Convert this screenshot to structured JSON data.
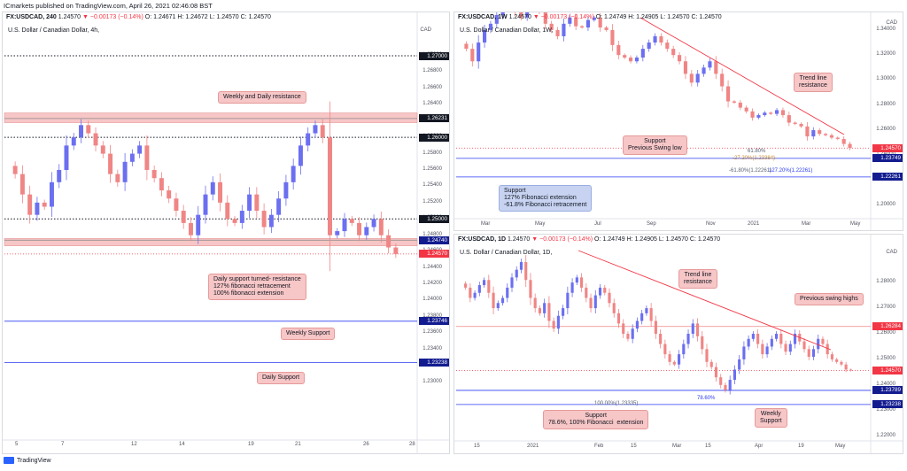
{
  "header": {
    "publisher": "ICmarkets published on TradingView.com, April 26, 2021 02:46:08 BST",
    "footer": "TradingView"
  },
  "colors": {
    "up": "#6b6ff0",
    "down": "#f08585",
    "line_red": "#f23645",
    "line_blue": "#2a3df0",
    "zone": "#f7c6c6",
    "axis_text": "#50535e"
  },
  "panel_4h": {
    "title": "FX:USDCAD, 240",
    "last": "1.24570",
    "change": "▼ −0.00173 (−0.14%)",
    "ohlc": {
      "o": "O: 1.24671",
      "h": "H: 1.24672",
      "l": "L: 1.24570",
      "c": "C: 1.24570"
    },
    "subtitle": "U.S. Dollar / Canadian Dollar, 4h,",
    "currency": "CAD",
    "annotations": {
      "weekly_daily_res": "Weekly and Daily resistance",
      "daily_support_turned": "Daily support turned- resistance\n127% fibonacci retracement\n100% fibonacci extension",
      "weekly_support": "Weekly Support",
      "daily_support": "Daily Support"
    },
    "tags": [
      "1.27000",
      "1.26231",
      "1.26000",
      "1.25000",
      "1.24740",
      "1.24570",
      "1.23746",
      "1.23238"
    ]
  },
  "panel_1w": {
    "title": "FX:USDCAD, 1W",
    "last": "1.24570",
    "change": "▼ −0.00173 (−0.14%)",
    "ohlc": {
      "o": "O: 1.24749",
      "h": "H: 1.24905",
      "l": "L: 1.24570",
      "c": "C: 1.24570"
    },
    "subtitle": "U.S. Dollar / Canadian Dollar, 1W,",
    "currency": "CAD",
    "annotations": {
      "trend_res": "Trend line\nresistance",
      "support_prev": "Support\nPrevious Swing low",
      "support_fib": "Support\n127% Fibonacci extension\n-61.8% Fibonacci retracement",
      "fib1": "61.80%",
      "fib2": "-27.20%(1.23384)",
      "fib3": "-61.80%(1.22261)",
      "fib4": "127.20%(1.22261)"
    },
    "tags": [
      "1.24570",
      "1.23749",
      "1.22261"
    ]
  },
  "panel_1d": {
    "title": "FX:USDCAD, 1D",
    "last": "1.24570",
    "change": "▼ −0.00173 (−0.14%)",
    "ohlc": {
      "o": "O: 1.24749",
      "h": "H: 1.24905",
      "l": "L: 1.24570",
      "c": "C: 1.24570"
    },
    "subtitle": "U.S. Dollar / Canadian Dollar, 1D,",
    "currency": "CAD",
    "annotations": {
      "trend_res": "Trend line\nresistance",
      "prev_highs": "Previous swing highs",
      "support": "Support\n78.6%, 100% Fibonacci  extension",
      "weekly_support": "Weekly\nSupport",
      "fib1": "78.60%",
      "fib2": "100.00%(1.23335)"
    },
    "tags": [
      "1.26284",
      "1.24570",
      "1.23789",
      "1.23238"
    ]
  },
  "chart_data": [
    {
      "type": "candlestick",
      "title": "U.S. Dollar / Canadian Dollar, 4h,",
      "xlabel": "",
      "ylabel": "CAD",
      "ylim": [
        1.223,
        1.2725
      ],
      "ticks_y": [
        "1.27000",
        "1.26800",
        "1.26600",
        "1.26400",
        "1.26200",
        "1.26000",
        "1.25800",
        "1.25600",
        "1.25400",
        "1.25200",
        "1.25000",
        "1.24800",
        "1.24600",
        "1.24400",
        "1.24200",
        "1.24000",
        "1.23800",
        "1.23600",
        "1.23400",
        "1.23200",
        "1.23000"
      ],
      "ticks_x": [
        "5",
        "7",
        "12",
        "14",
        "19",
        "21",
        "26",
        "28"
      ],
      "levels": [
        {
          "label": "1.27000",
          "value": 1.27
        },
        {
          "label": "1.26231",
          "value": 1.26231
        },
        {
          "label": "1.26000",
          "value": 1.26
        },
        {
          "label": "1.25000",
          "value": 1.25
        },
        {
          "label": "1.24740",
          "value": 1.2474
        },
        {
          "label": "1.24570",
          "value": 1.2457
        },
        {
          "label": "1.23746",
          "value": 1.23746
        },
        {
          "label": "1.23238",
          "value": 1.23238
        }
      ],
      "zones": [
        [
          1.2618,
          1.263
        ],
        [
          1.2467,
          1.2476
        ]
      ],
      "close_path": [
        1.2555,
        1.253,
        1.2505,
        1.252,
        1.2515,
        1.2545,
        1.256,
        1.259,
        1.26,
        1.2615,
        1.2605,
        1.259,
        1.258,
        1.2555,
        1.2545,
        1.257,
        1.258,
        1.259,
        1.256,
        1.255,
        1.2535,
        1.2525,
        1.251,
        1.2495,
        1.248,
        1.2505,
        1.253,
        1.2545,
        1.252,
        1.25,
        1.2495,
        1.251,
        1.253,
        1.251,
        1.249,
        1.2505,
        1.2525,
        1.2545,
        1.2565,
        1.259,
        1.2605,
        1.2615,
        1.26,
        1.248,
        1.2485,
        1.25,
        1.2495,
        1.248,
        1.249,
        1.25,
        1.248,
        1.2465,
        1.2457
      ]
    },
    {
      "type": "candlestick",
      "title": "U.S. Dollar / Canadian Dollar, 1W,",
      "ylabel": "CAD",
      "ylim": [
        1.19,
        1.347
      ],
      "ticks_y": [
        "1.34000",
        "1.32000",
        "1.30000",
        "1.28000",
        "1.26000",
        "1.24000",
        "1.22000",
        "1.20000"
      ],
      "ticks_x": [
        "Mar",
        "May",
        "Jul",
        "Sep",
        "Nov",
        "2021",
        "Mar",
        "May"
      ],
      "levels": [
        {
          "label": "1.24570",
          "value": 1.2457
        },
        {
          "label": "1.23749",
          "value": 1.23749
        },
        {
          "label": "1.22261",
          "value": 1.22261
        }
      ],
      "close_path": [
        1.325,
        1.315,
        1.33,
        1.34,
        1.345,
        1.352,
        1.36,
        1.365,
        1.355,
        1.35,
        1.356,
        1.36,
        1.355,
        1.345,
        1.34,
        1.335,
        1.345,
        1.35,
        1.343,
        1.342,
        1.348,
        1.35,
        1.342,
        1.34,
        1.328,
        1.32,
        1.318,
        1.315,
        1.318,
        1.325,
        1.33,
        1.335,
        1.33,
        1.325,
        1.32,
        1.315,
        1.305,
        1.298,
        1.305,
        1.31,
        1.315,
        1.305,
        1.295,
        1.283,
        1.282,
        1.278,
        1.275,
        1.27,
        1.272,
        1.274,
        1.273,
        1.276,
        1.272,
        1.266,
        1.265,
        1.263,
        1.255,
        1.26,
        1.257,
        1.256,
        1.254,
        1.253,
        1.249,
        1.2457
      ]
    },
    {
      "type": "candlestick",
      "title": "U.S. Dollar / Canadian Dollar, 1D,",
      "ylabel": "CAD",
      "ylim": [
        1.2185,
        1.2925
      ],
      "ticks_y": [
        "1.28000",
        "1.27000",
        "1.26000",
        "1.25000",
        "1.24000",
        "1.23000",
        "1.22000"
      ],
      "ticks_x": [
        "15",
        "2021",
        "Feb",
        "15",
        "Mar",
        "15",
        "Apr",
        "19",
        "May"
      ],
      "levels": [
        {
          "label": "1.26284",
          "value": 1.26284
        },
        {
          "label": "1.24570",
          "value": 1.2457
        },
        {
          "label": "1.23789",
          "value": 1.23789
        },
        {
          "label": "1.23238",
          "value": 1.23238
        }
      ],
      "close_path": [
        1.278,
        1.274,
        1.276,
        1.279,
        1.281,
        1.276,
        1.27,
        1.272,
        1.274,
        1.278,
        1.282,
        1.285,
        1.288,
        1.281,
        1.274,
        1.27,
        1.268,
        1.272,
        1.265,
        1.262,
        1.267,
        1.27,
        1.276,
        1.28,
        1.282,
        1.278,
        1.274,
        1.27,
        1.275,
        1.278,
        1.276,
        1.272,
        1.268,
        1.264,
        1.26,
        1.258,
        1.262,
        1.265,
        1.268,
        1.27,
        1.265,
        1.26,
        1.256,
        1.252,
        1.249,
        1.248,
        1.252,
        1.256,
        1.26,
        1.264,
        1.259,
        1.254,
        1.249,
        1.247,
        1.243,
        1.24,
        1.238,
        1.242,
        1.246,
        1.25,
        1.255,
        1.258,
        1.26,
        1.256,
        1.252,
        1.255,
        1.258,
        1.26,
        1.256,
        1.253,
        1.256,
        1.26,
        1.257,
        1.254,
        1.251,
        1.254,
        1.258,
        1.256,
        1.252,
        1.25,
        1.249,
        1.248,
        1.246,
        1.2457
      ]
    }
  ]
}
